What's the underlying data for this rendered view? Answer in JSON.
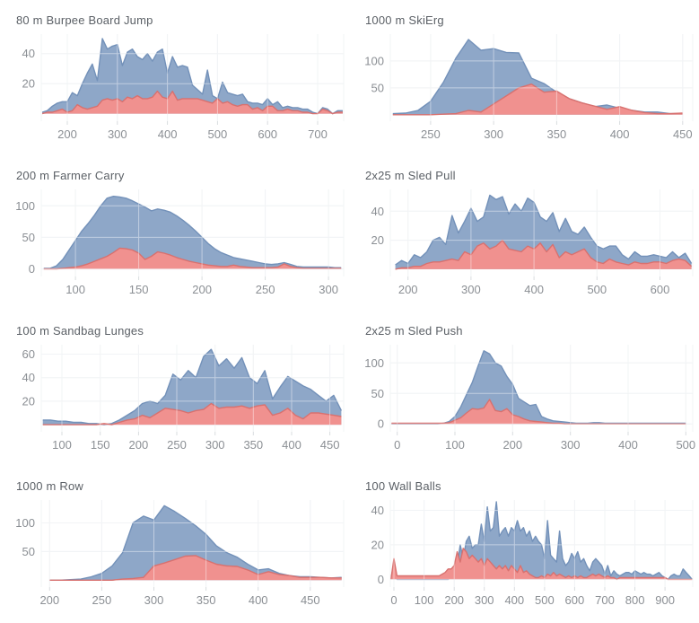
{
  "page": {
    "background": "#ffffff"
  },
  "colors": {
    "blue_fill": "#8ea7c8",
    "blue_stroke": "#7391b9",
    "red_fill": "#f0918f",
    "red_stroke": "#d8716f",
    "grid": "#e8ebee",
    "grid_overlay": "rgba(255,255,255,0.45)",
    "tick_mark": "#d9dcdf",
    "tick_text": "#8b8f94",
    "title_text": "#5b6066"
  },
  "chart_data": [
    {
      "type": "area",
      "title": "80 m Burpee Board Jump",
      "xlabel": "",
      "ylabel": "",
      "xlim": [
        148,
        752
      ],
      "ylim": [
        -5,
        53
      ],
      "xticks": [
        200,
        300,
        400,
        500,
        600,
        700
      ],
      "yticks": [
        20,
        40
      ],
      "grid": true,
      "legend": "none",
      "x_start": 150,
      "x_step": 10,
      "series": [
        {
          "name": "blue",
          "values": [
            1,
            2,
            5,
            7,
            8,
            8,
            14,
            12,
            20,
            27,
            33,
            22,
            50,
            43,
            45,
            46,
            32,
            41,
            43,
            38,
            36,
            40,
            35,
            41,
            43,
            27,
            38,
            31,
            32,
            31,
            19,
            16,
            13,
            29,
            12,
            10,
            21,
            14,
            13,
            12,
            13,
            8,
            7,
            7,
            6,
            10,
            6,
            8,
            4,
            5,
            4,
            4,
            3,
            3,
            1,
            0,
            4,
            3,
            0,
            2,
            2
          ]
        },
        {
          "name": "red",
          "values": [
            0,
            1,
            1,
            2,
            3,
            1,
            2,
            6,
            4,
            3,
            4,
            5,
            9,
            10,
            9,
            10,
            8,
            11,
            10,
            12,
            10,
            10,
            11,
            15,
            11,
            10,
            15,
            9,
            10,
            10,
            10,
            10,
            9,
            8,
            7,
            10,
            7,
            8,
            6,
            5,
            6,
            6,
            3,
            4,
            2,
            5,
            5,
            2,
            2,
            3,
            2,
            2,
            1,
            1,
            0,
            0,
            3,
            2,
            0,
            1,
            1
          ]
        }
      ]
    },
    {
      "type": "area",
      "title": "1000 m SkiErg",
      "xlabel": "",
      "ylabel": "",
      "xlim": [
        218,
        458
      ],
      "ylim": [
        -12,
        150
      ],
      "xticks": [
        250,
        300,
        350,
        400,
        450
      ],
      "yticks": [
        50,
        100
      ],
      "grid": true,
      "legend": "none",
      "x_start": 220,
      "x_step": 10,
      "series": [
        {
          "name": "blue",
          "values": [
            2,
            3,
            8,
            25,
            60,
            105,
            140,
            120,
            123,
            116,
            115,
            68,
            58,
            42,
            30,
            22,
            15,
            18,
            12,
            8,
            5,
            5,
            2,
            2
          ]
        },
        {
          "name": "red",
          "values": [
            0,
            0,
            0,
            0,
            1,
            2,
            8,
            5,
            20,
            35,
            50,
            57,
            42,
            44,
            30,
            22,
            16,
            10,
            15,
            8,
            4,
            2,
            2,
            3
          ]
        }
      ]
    },
    {
      "type": "area",
      "title": "200 m Farmer Carry",
      "xlabel": "",
      "ylabel": "",
      "xlim": [
        73,
        312
      ],
      "ylim": [
        -12,
        126
      ],
      "xticks": [
        100,
        150,
        200,
        250,
        300
      ],
      "yticks": [
        0,
        50,
        100
      ],
      "grid": true,
      "legend": "none",
      "x_start": 75,
      "x_step": 5,
      "series": [
        {
          "name": "blue",
          "values": [
            1,
            1,
            5,
            15,
            30,
            45,
            60,
            72,
            85,
            100,
            112,
            115,
            114,
            112,
            108,
            103,
            98,
            92,
            95,
            93,
            90,
            84,
            77,
            69,
            60,
            50,
            40,
            32,
            26,
            22,
            18,
            16,
            14,
            12,
            10,
            8,
            7,
            8,
            10,
            7,
            4,
            3,
            3,
            3,
            3,
            3,
            2,
            2
          ]
        },
        {
          "name": "red",
          "values": [
            0,
            0,
            0,
            1,
            2,
            3,
            5,
            8,
            12,
            16,
            20,
            26,
            33,
            32,
            30,
            25,
            15,
            20,
            27,
            25,
            22,
            18,
            15,
            12,
            10,
            8,
            6,
            5,
            4,
            4,
            6,
            4,
            3,
            2,
            2,
            2,
            2,
            3,
            8,
            4,
            2,
            1,
            1,
            1,
            1,
            1,
            1,
            1
          ]
        }
      ]
    },
    {
      "type": "area",
      "title": "2x25 m Sled Pull",
      "xlabel": "",
      "ylabel": "",
      "xlim": [
        172,
        652
      ],
      "ylim": [
        -5,
        55
      ],
      "xticks": [
        200,
        300,
        400,
        500,
        600
      ],
      "yticks": [
        20,
        40
      ],
      "grid": true,
      "legend": "none",
      "x_start": 180,
      "x_step": 10,
      "series": [
        {
          "name": "blue",
          "values": [
            3,
            6,
            4,
            10,
            8,
            12,
            20,
            22,
            17,
            37,
            25,
            33,
            42,
            33,
            36,
            51,
            48,
            50,
            38,
            45,
            40,
            49,
            46,
            36,
            33,
            39,
            26,
            35,
            26,
            24,
            29,
            22,
            16,
            14,
            16,
            16,
            10,
            7,
            12,
            9,
            9,
            10,
            9,
            8,
            12,
            8,
            11,
            4
          ]
        },
        {
          "name": "red",
          "values": [
            0,
            1,
            1,
            2,
            2,
            4,
            5,
            5,
            6,
            7,
            6,
            12,
            10,
            16,
            18,
            14,
            16,
            20,
            14,
            13,
            12,
            16,
            14,
            18,
            12,
            17,
            8,
            12,
            10,
            12,
            14,
            8,
            5,
            4,
            7,
            5,
            4,
            3,
            5,
            4,
            4,
            5,
            5,
            4,
            6,
            7,
            6,
            2
          ]
        }
      ]
    },
    {
      "type": "area",
      "title": "100 m Sandbag Lunges",
      "xlabel": "",
      "ylabel": "",
      "xlim": [
        73,
        468
      ],
      "ylim": [
        -6,
        68
      ],
      "xticks": [
        100,
        150,
        200,
        250,
        300,
        350,
        400,
        450
      ],
      "yticks": [
        20,
        40,
        60
      ],
      "grid": true,
      "legend": "none",
      "x_start": 75,
      "x_step": 10,
      "series": [
        {
          "name": "blue",
          "values": [
            4,
            4,
            3,
            3,
            2,
            2,
            1,
            1,
            0,
            1,
            4,
            8,
            12,
            18,
            20,
            18,
            25,
            43,
            38,
            46,
            40,
            58,
            64,
            50,
            56,
            48,
            57,
            40,
            35,
            46,
            22,
            32,
            41,
            37,
            33,
            30,
            25,
            20,
            25,
            12
          ]
        },
        {
          "name": "red",
          "values": [
            0,
            0,
            0,
            0,
            0,
            0,
            0,
            0,
            1,
            0,
            2,
            4,
            5,
            8,
            6,
            10,
            14,
            13,
            12,
            10,
            12,
            13,
            18,
            14,
            15,
            15,
            16,
            14,
            16,
            17,
            8,
            10,
            14,
            8,
            5,
            10,
            10,
            9,
            8,
            7
          ]
        }
      ]
    },
    {
      "type": "area",
      "title": "2x25 m Sled Push",
      "xlabel": "",
      "ylabel": "",
      "xlim": [
        -12,
        512
      ],
      "ylim": [
        -13,
        130
      ],
      "xticks": [
        0,
        100,
        200,
        300,
        400,
        500
      ],
      "yticks": [
        0,
        50,
        100
      ],
      "grid": true,
      "legend": "none",
      "x_start": -10,
      "x_step": 10,
      "series": [
        {
          "name": "blue",
          "values": [
            0,
            0,
            0,
            0,
            0,
            0,
            0,
            0,
            0,
            1,
            4,
            12,
            28,
            48,
            68,
            95,
            120,
            115,
            100,
            95,
            78,
            65,
            42,
            36,
            30,
            32,
            12,
            8,
            5,
            4,
            3,
            2,
            1,
            1,
            1,
            2,
            2,
            1,
            1,
            1,
            1,
            1,
            1,
            1,
            1,
            1,
            1,
            1,
            1,
            1,
            1,
            1
          ]
        },
        {
          "name": "red",
          "values": [
            1,
            1,
            1,
            1,
            1,
            1,
            1,
            1,
            1,
            1,
            2,
            6,
            10,
            18,
            25,
            24,
            26,
            40,
            22,
            20,
            25,
            15,
            12,
            8,
            5,
            4,
            3,
            2,
            1,
            1,
            0,
            0,
            0,
            0,
            0,
            0,
            0,
            0,
            0,
            0,
            0,
            0,
            0,
            0,
            0,
            0,
            0,
            0,
            0,
            0,
            0,
            0
          ]
        }
      ]
    },
    {
      "type": "area",
      "title": "1000 m Row",
      "xlabel": "",
      "ylabel": "",
      "xlim": [
        192,
        482
      ],
      "ylim": [
        -12,
        140
      ],
      "xticks": [
        200,
        250,
        300,
        350,
        400,
        450
      ],
      "yticks": [
        50,
        100
      ],
      "grid": true,
      "legend": "none",
      "x_start": 200,
      "x_step": 10,
      "series": [
        {
          "name": "blue",
          "values": [
            0,
            0,
            1,
            2,
            6,
            12,
            25,
            48,
            100,
            112,
            105,
            130,
            120,
            108,
            95,
            80,
            60,
            48,
            40,
            28,
            18,
            20,
            12,
            8,
            6,
            6,
            5,
            4,
            5
          ]
        },
        {
          "name": "red",
          "values": [
            0,
            0,
            0,
            0,
            0,
            0,
            0,
            2,
            3,
            5,
            25,
            30,
            36,
            42,
            43,
            35,
            28,
            25,
            24,
            18,
            10,
            15,
            10,
            8,
            5,
            5,
            5,
            4,
            4
          ]
        }
      ]
    },
    {
      "type": "area",
      "title": "100 Wall Balls",
      "xlabel": "",
      "ylabel": "",
      "xlim": [
        -12,
        992
      ],
      "ylim": [
        -4.5,
        46
      ],
      "xticks": [
        0,
        100,
        200,
        300,
        400,
        500,
        600,
        700,
        800,
        900
      ],
      "yticks": [
        0,
        20,
        40
      ],
      "grid": true,
      "legend": "none",
      "x_start": -10,
      "x_step": 10,
      "series": [
        {
          "name": "blue",
          "values": [
            0,
            10,
            0,
            0,
            0,
            0,
            0,
            0,
            0,
            0,
            0,
            0,
            0,
            0,
            0,
            0,
            0,
            0,
            0,
            0,
            1,
            3,
            8,
            20,
            12,
            22,
            25,
            18,
            20,
            20,
            32,
            22,
            42,
            28,
            30,
            45,
            25,
            28,
            30,
            25,
            30,
            28,
            34,
            28,
            30,
            25,
            28,
            22,
            25,
            22,
            20,
            12,
            34,
            14,
            12,
            10,
            28,
            12,
            8,
            10,
            15,
            12,
            16,
            10,
            12,
            8,
            5,
            10,
            12,
            10,
            8,
            3,
            8,
            2,
            5,
            3,
            2,
            3,
            4,
            4,
            3,
            5,
            4,
            3,
            4,
            3,
            3,
            2,
            3,
            4,
            2,
            1,
            0,
            2,
            3,
            2,
            2,
            6,
            4,
            2,
            0
          ]
        },
        {
          "name": "red",
          "values": [
            0,
            12,
            2,
            2,
            2,
            2,
            2,
            2,
            2,
            2,
            2,
            2,
            2,
            2,
            2,
            2,
            2,
            3,
            4,
            6,
            6,
            8,
            16,
            10,
            18,
            16,
            12,
            14,
            12,
            10,
            12,
            8,
            12,
            10,
            8,
            6,
            8,
            6,
            8,
            5,
            8,
            6,
            4,
            8,
            4,
            5,
            3,
            2,
            1,
            1,
            2,
            1,
            3,
            2,
            4,
            2,
            3,
            2,
            1,
            2,
            1,
            2,
            1,
            2,
            1,
            1,
            2,
            3,
            2,
            3,
            2,
            1,
            2,
            1,
            1,
            0,
            1,
            1,
            1,
            1,
            1,
            1,
            1,
            1,
            1,
            1,
            1,
            1,
            1,
            1,
            1,
            1,
            0,
            0,
            0,
            0,
            0,
            0,
            0,
            0,
            0
          ]
        }
      ]
    }
  ]
}
